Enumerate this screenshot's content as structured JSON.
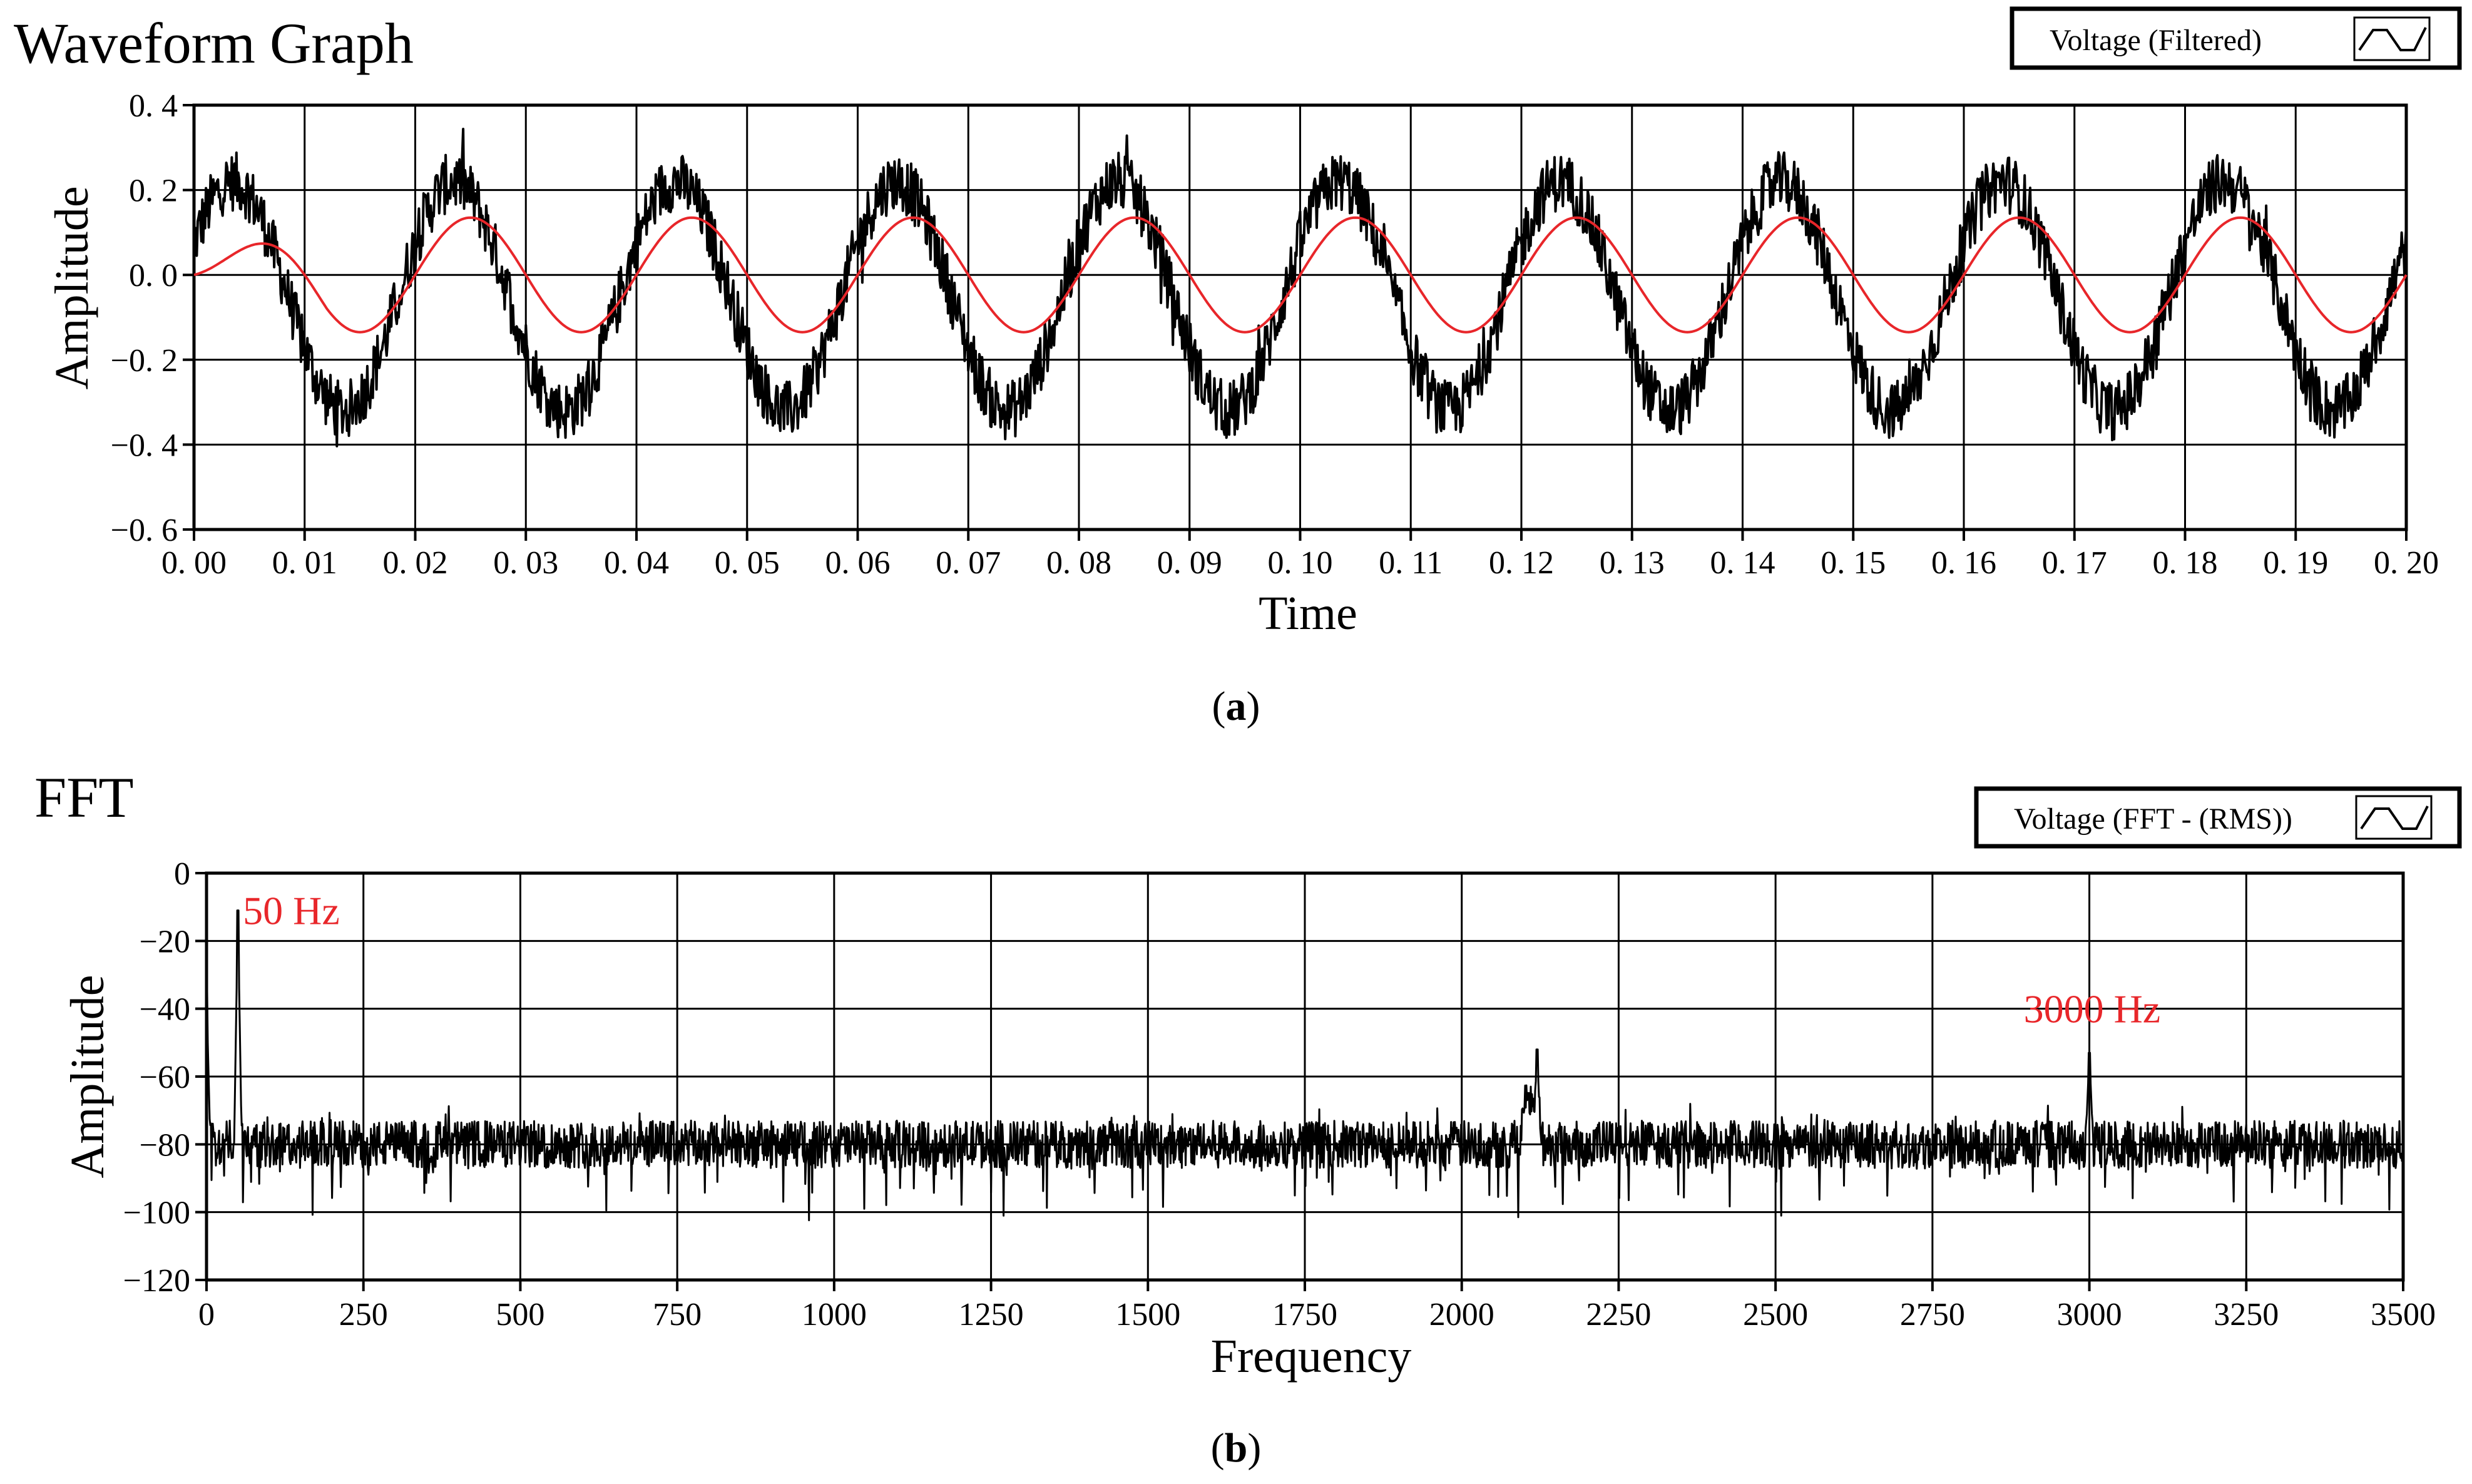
{
  "chart_data": [
    {
      "type": "line",
      "title": "Waveform Graph",
      "xlabel": "Time",
      "ylabel": "Amplitude",
      "xlim": [
        0,
        0.2
      ],
      "ylim": [
        -0.6,
        0.4
      ],
      "grid": true,
      "legend_position": "top-right",
      "caption_letter": "a",
      "x_ticks": [
        "0. 00",
        "0. 01",
        "0. 02",
        "0. 03",
        "0. 04",
        "0. 05",
        "0. 06",
        "0. 07",
        "0. 08",
        "0. 09",
        "0. 10",
        "0. 11",
        "0. 12",
        "0. 13",
        "0. 14",
        "0. 15",
        "0. 16",
        "0. 17",
        "0. 18",
        "0. 19",
        "0. 20"
      ],
      "y_ticks": [
        "0. 4",
        "0. 2",
        "0. 0",
        "−0. 2",
        "−0. 4",
        "−0. 6"
      ],
      "y_tick_values": [
        0.4,
        0.2,
        0.0,
        -0.2,
        -0.4,
        -0.6
      ],
      "series": [
        {
          "name": "Voltage (Filtered)",
          "color": "#000000",
          "signal": {
            "frequency_hz": 50,
            "amplitude": 0.27,
            "offset": -0.05,
            "phase_shift_s": 0.0015,
            "noise_amplitude": 0.07,
            "sample_count": 2400
          }
        },
        {
          "color": "#e8262a",
          "signal": {
            "frequency_hz": 50,
            "amplitude": 0.135,
            "offset": 0.0,
            "start_amplitude": 0.02,
            "rise_time_s": 0.012,
            "sample_count": 1000
          }
        }
      ]
    },
    {
      "type": "line",
      "title": "FFT",
      "xlabel": "Frequency",
      "ylabel": "Amplitude",
      "xlim": [
        0,
        3500
      ],
      "ylim": [
        -120,
        0
      ],
      "grid": true,
      "legend_position": "top-right",
      "caption_letter": "b",
      "x_ticks": [
        "0",
        "250",
        "500",
        "750",
        "1000",
        "1250",
        "1500",
        "1750",
        "2000",
        "2250",
        "2500",
        "2750",
        "3000",
        "3250",
        "3500"
      ],
      "x_tick_values": [
        0,
        250,
        500,
        750,
        1000,
        1250,
        1500,
        1750,
        2000,
        2250,
        2500,
        2750,
        3000,
        3250,
        3500
      ],
      "y_ticks": [
        "0",
        "−20",
        "−40",
        "−60",
        "−80",
        "−100",
        "−120"
      ],
      "y_tick_values": [
        0,
        -20,
        -40,
        -60,
        -80,
        -100,
        -120
      ],
      "series": [
        {
          "name": "Voltage (FFT - (RMS))",
          "color": "#000000",
          "noise_floor": -80,
          "peaks": [
            {
              "x": 0,
              "y": -35
            },
            {
              "x": 50,
              "y": -11
            },
            {
              "x": 2120,
              "y": -52
            },
            {
              "x": 3000,
              "y": -53
            }
          ],
          "sample_count": 3500
        }
      ],
      "annotations": [
        {
          "text": "50 Hz",
          "x": 50,
          "y": -15,
          "color": "#e8262a"
        },
        {
          "text": "3000 Hz",
          "x": 3000,
          "y": -44,
          "color": "#e8262a"
        }
      ]
    }
  ]
}
